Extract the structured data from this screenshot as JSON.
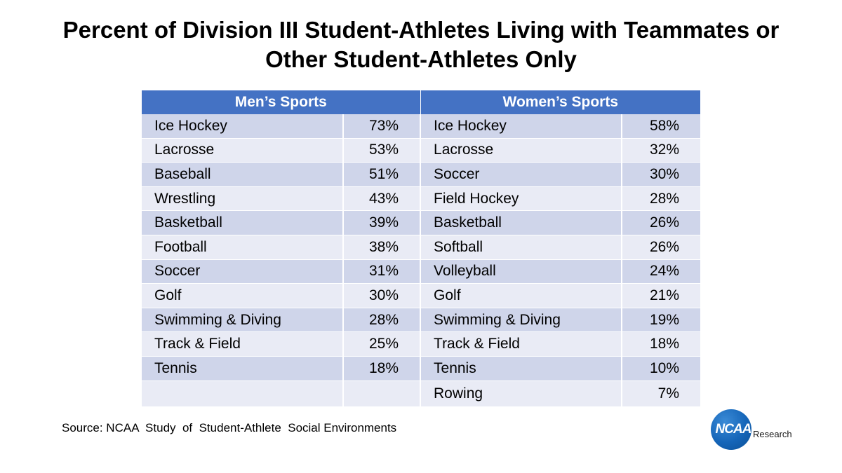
{
  "title_line1": "Percent of Division III Student-Athletes Living with Teammates or",
  "title_line2": "Other Student-Athletes Only",
  "chart_data": {
    "type": "table",
    "title": "Percent of Division III Student-Athletes Living with Teammates or Other Student-Athletes Only",
    "headers": [
      "Men’s Sports",
      "Women’s Sports"
    ],
    "rows": [
      {
        "men_sport": "Ice Hockey",
        "men_pct": "73%",
        "women_sport": "Ice Hockey",
        "women_pct": "58%"
      },
      {
        "men_sport": "Lacrosse",
        "men_pct": "53%",
        "women_sport": "Lacrosse",
        "women_pct": "32%"
      },
      {
        "men_sport": "Baseball",
        "men_pct": "51%",
        "women_sport": "Soccer",
        "women_pct": "30%"
      },
      {
        "men_sport": "Wrestling",
        "men_pct": "43%",
        "women_sport": "Field Hockey",
        "women_pct": "28%"
      },
      {
        "men_sport": "Basketball",
        "men_pct": "39%",
        "women_sport": "Basketball",
        "women_pct": "26%"
      },
      {
        "men_sport": "Football",
        "men_pct": "38%",
        "women_sport": "Softball",
        "women_pct": "26%"
      },
      {
        "men_sport": "Soccer",
        "men_pct": "31%",
        "women_sport": "Volleyball",
        "women_pct": "24%"
      },
      {
        "men_sport": "Golf",
        "men_pct": "30%",
        "women_sport": "Golf",
        "women_pct": "21%"
      },
      {
        "men_sport": "Swimming & Diving",
        "men_pct": "28%",
        "women_sport": "Swimming & Diving",
        "women_pct": "19%"
      },
      {
        "men_sport": "Track & Field",
        "men_pct": "25%",
        "women_sport": "Track & Field",
        "women_pct": "18%"
      },
      {
        "men_sport": "Tennis",
        "men_pct": "18%",
        "women_sport": "Tennis",
        "women_pct": "10%"
      },
      {
        "men_sport": "",
        "men_pct": "",
        "women_sport": "Rowing",
        "women_pct": "7%"
      }
    ]
  },
  "source": "Source: NCAA  Study  of  Student-Athlete  Social Environments",
  "logo": {
    "mark": "NCAA",
    "sub": "Research"
  },
  "colors": {
    "header_bg": "#4472c4",
    "row_dark": "#cfd5ea",
    "row_light": "#e9ebf5",
    "logo_blue": "#1565b8"
  }
}
